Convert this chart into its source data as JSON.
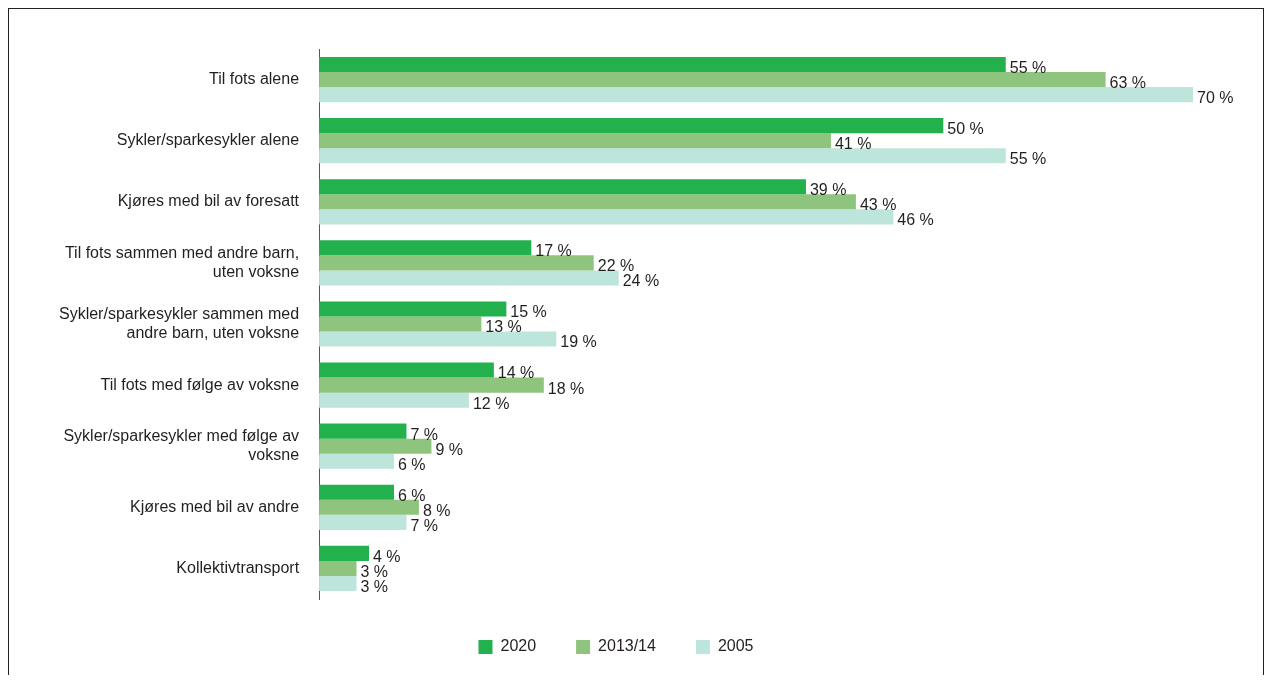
{
  "chart_data": {
    "type": "bar",
    "orientation": "horizontal",
    "categories": [
      "Til fots alene",
      "Sykler/sparkesykler alene",
      "Kjøres med bil av foresatt",
      "Til fots sammen med andre barn, uten voksne",
      "Sykler/sparkesykler sammen med andre barn, uten voksne",
      "Til fots med følge av voksne",
      "Sykler/sparkesykler med følge av voksne",
      "Kjøres med bil av andre",
      "Kollektivtransport"
    ],
    "series": [
      {
        "name": "2020",
        "color": "#22b14c",
        "values": [
          55,
          50,
          39,
          17,
          15,
          14,
          7,
          6,
          4
        ],
        "value_labels": [
          "55 %",
          "50 %",
          "39 %",
          "17 %",
          "15 %",
          "14 %",
          "7 %",
          "6 %",
          "4 %"
        ]
      },
      {
        "name": "2013/14",
        "color": "#8fc47f",
        "values": [
          63,
          41,
          43,
          22,
          13,
          18,
          9,
          8,
          3
        ],
        "value_labels": [
          "63 %",
          "41 %",
          "43 %",
          "22 %",
          "13 %",
          "18 %",
          "9 %",
          "8 %",
          "3 %"
        ]
      },
      {
        "name": "2005",
        "color": "#bde5dc",
        "values": [
          70,
          55,
          46,
          24,
          19,
          12,
          6,
          7,
          3
        ],
        "value_labels": [
          "70 %",
          "55 %",
          "46 %",
          "24 %",
          "19 %",
          "12 %",
          "6 %",
          "7 %",
          "3 %"
        ]
      }
    ],
    "legend": "bottom"
  }
}
